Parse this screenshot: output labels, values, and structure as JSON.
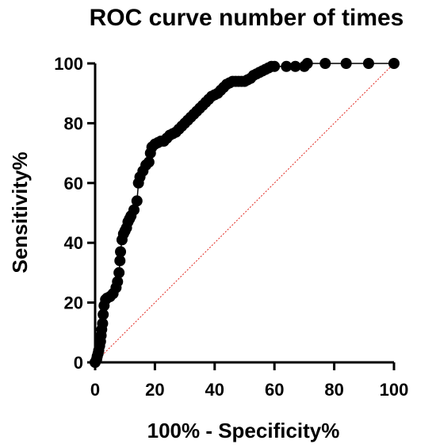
{
  "chart_data": {
    "type": "line",
    "title": "ROC curve number of times",
    "xlabel": "100% - Specificity%",
    "ylabel": "Sensitivity%",
    "xlim": [
      0,
      100
    ],
    "ylim": [
      0,
      100
    ],
    "xticks": [
      "0",
      "20",
      "40",
      "60",
      "80",
      "100"
    ],
    "yticks": [
      "0",
      "20",
      "40",
      "60",
      "80",
      "100"
    ],
    "grid": false,
    "colors": {
      "curve": "#000000",
      "reference": "#e0271f"
    },
    "series": [
      {
        "style": "line-with-markers",
        "x": [
          0,
          0.5,
          0.7,
          1.0,
          1.2,
          1.5,
          1.8,
          2.0,
          2.2,
          2.5,
          2.7,
          3.0,
          3.5,
          4.0,
          5.0,
          6.0,
          7.0,
          7.5,
          8.0,
          8.3,
          8.5,
          9.0,
          9.5,
          10.0,
          10.5,
          11.0,
          11.5,
          12.0,
          13.0,
          14.0,
          14.5,
          15.0,
          16.0,
          17.0,
          18.0,
          18.5,
          19.0,
          20.0,
          21.0,
          22.0,
          23.0,
          24.0,
          25.0,
          26.0,
          27.0,
          28.0,
          29.0,
          30.0,
          31.0,
          32.0,
          33.0,
          34.0,
          35.0,
          36.0,
          37.0,
          38.0,
          39.0,
          40.0,
          41.0,
          42.0,
          43.0,
          44.0,
          45.0,
          46.0,
          47.0,
          48.0,
          49.0,
          50.0,
          51.0,
          52.0,
          53.0,
          54.0,
          55.0,
          56.0,
          57.0,
          58.0,
          59.0,
          60.0,
          64.0,
          67.0,
          70.0,
          71.0,
          77.0,
          84.0,
          91.5,
          100.0
        ],
        "y": [
          0,
          1.0,
          2.0,
          3.0,
          4.0,
          5.5,
          7.0,
          9.0,
          11.0,
          13.0,
          16.0,
          19.0,
          21.0,
          21.5,
          22.0,
          23.0,
          25.0,
          27.0,
          30.0,
          34.0,
          37.0,
          41.0,
          43.0,
          44.0,
          45.0,
          47.0,
          48.0,
          49.0,
          51.0,
          54.0,
          60.0,
          62.0,
          64.0,
          66.0,
          67.0,
          70.0,
          72.0,
          73.0,
          73.5,
          74.0,
          74.0,
          75.0,
          76.0,
          76.5,
          77.0,
          78.0,
          79.0,
          80.0,
          81.0,
          82.0,
          83.0,
          84.0,
          85.0,
          86.0,
          87.0,
          88.0,
          89.0,
          89.5,
          90.0,
          91.0,
          92.0,
          93.0,
          93.5,
          94.0,
          94.0,
          94.0,
          94.0,
          94.0,
          94.5,
          95.0,
          96.0,
          96.5,
          97.0,
          97.5,
          98.0,
          98.5,
          99.0,
          99.0,
          99.0,
          99.0,
          99.0,
          100.0,
          100.0,
          100.0,
          100.0,
          100.0
        ]
      },
      {
        "style": "dashed-reference",
        "x": [
          0,
          100
        ],
        "y": [
          0,
          100
        ]
      }
    ]
  }
}
